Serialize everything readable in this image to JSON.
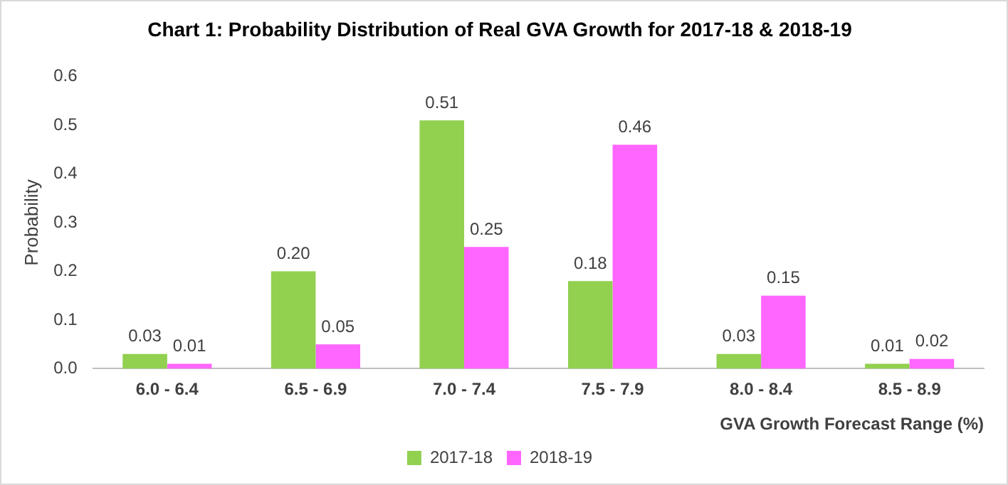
{
  "chart_data": {
    "type": "bar",
    "title": "Chart 1: Probability Distribution of Real GVA Growth for 2017-18 & 2018-19",
    "xlabel": "GVA Growth Forecast Range (%)",
    "ylabel": "Probability",
    "categories": [
      "6.0 - 6.4",
      "6.5 - 6.9",
      "7.0 - 7.4",
      "7.5 - 7.9",
      "8.0 - 8.4",
      "8.5 - 8.9"
    ],
    "series": [
      {
        "name": "2017-18",
        "color": "#92d050",
        "values": [
          0.03,
          0.2,
          0.51,
          0.18,
          0.03,
          0.01
        ],
        "value_labels": [
          "0.03",
          "0.20",
          "0.51",
          "0.18",
          "0.03",
          "0.01"
        ]
      },
      {
        "name": "2018-19",
        "color": "#ff66ff",
        "values": [
          0.01,
          0.05,
          0.25,
          0.46,
          0.15,
          0.02
        ],
        "value_labels": [
          "0.01",
          "0.05",
          "0.25",
          "0.46",
          "0.15",
          "0.02"
        ]
      }
    ],
    "ylim": [
      0,
      0.6
    ],
    "yticks": [
      {
        "value": 0,
        "label": "0.0"
      },
      {
        "value": 0.1,
        "label": "0.1"
      },
      {
        "value": 0.2,
        "label": "0.2"
      },
      {
        "value": 0.3,
        "label": "0.3"
      },
      {
        "value": 0.4,
        "label": "0.4"
      },
      {
        "value": 0.5,
        "label": "0.5"
      },
      {
        "value": 0.6,
        "label": "0.6"
      }
    ],
    "grid": false,
    "legend": "bottom"
  }
}
